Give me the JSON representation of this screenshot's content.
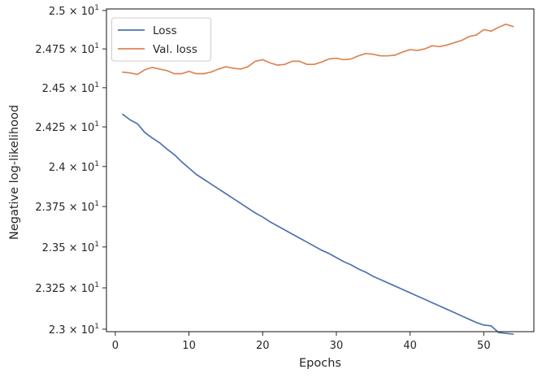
{
  "chart_data": {
    "type": "line",
    "xlabel": "Epochs",
    "ylabel": "Negative log-likelihood",
    "xlim": [
      -1.2,
      56.8
    ],
    "ylim": [
      22.985,
      25.01
    ],
    "y_scale": "log",
    "grid": false,
    "legend_placement": "top-left",
    "x_ticks": [
      0,
      10,
      20,
      30,
      40,
      50
    ],
    "y_ticks": [
      {
        "value": 23.0,
        "mantissa": "2.3"
      },
      {
        "value": 23.25,
        "mantissa": "2.325"
      },
      {
        "value": 23.5,
        "mantissa": "2.35"
      },
      {
        "value": 23.75,
        "mantissa": "2.375"
      },
      {
        "value": 24.0,
        "mantissa": "2.4"
      },
      {
        "value": 24.25,
        "mantissa": "2.425"
      },
      {
        "value": 24.5,
        "mantissa": "2.45"
      },
      {
        "value": 24.75,
        "mantissa": "2.475"
      },
      {
        "value": 25.0,
        "mantissa": "2.5"
      }
    ],
    "y_tick_suffix": "× 10",
    "y_tick_exponent": "1",
    "series": [
      {
        "name": "Loss",
        "color": "#4c72b0",
        "x": [
          1,
          2,
          3,
          4,
          5,
          6,
          7,
          8,
          9,
          10,
          11,
          12,
          13,
          14,
          15,
          16,
          17,
          18,
          19,
          20,
          21,
          22,
          23,
          24,
          25,
          26,
          27,
          28,
          29,
          30,
          31,
          32,
          33,
          34,
          35,
          36,
          37,
          38,
          39,
          40,
          41,
          42,
          43,
          44,
          45,
          46,
          47,
          48,
          49,
          50,
          51,
          52,
          53,
          54
        ],
        "y": [
          24.33,
          24.295,
          24.27,
          24.215,
          24.18,
          24.15,
          24.11,
          24.075,
          24.03,
          23.99,
          23.95,
          23.92,
          23.89,
          23.86,
          23.83,
          23.8,
          23.77,
          23.74,
          23.71,
          23.685,
          23.655,
          23.63,
          23.605,
          23.58,
          23.555,
          23.53,
          23.505,
          23.48,
          23.46,
          23.435,
          23.41,
          23.39,
          23.365,
          23.345,
          23.32,
          23.3,
          23.28,
          23.26,
          23.24,
          23.22,
          23.2,
          23.18,
          23.16,
          23.14,
          23.12,
          23.1,
          23.08,
          23.06,
          23.04,
          23.025,
          23.02,
          22.98,
          22.975,
          22.97
        ]
      },
      {
        "name": "Val. loss",
        "color": "#dd8452",
        "x": [
          1,
          2,
          3,
          4,
          5,
          6,
          7,
          8,
          9,
          10,
          11,
          12,
          13,
          14,
          15,
          16,
          17,
          18,
          19,
          20,
          21,
          22,
          23,
          24,
          25,
          26,
          27,
          28,
          29,
          30,
          31,
          32,
          33,
          34,
          35,
          36,
          37,
          38,
          39,
          40,
          41,
          42,
          43,
          44,
          45,
          46,
          47,
          48,
          49,
          50,
          51,
          52,
          53,
          54
        ],
        "y": [
          24.6,
          24.595,
          24.585,
          24.615,
          24.63,
          24.62,
          24.61,
          24.59,
          24.59,
          24.605,
          24.59,
          24.59,
          24.6,
          24.62,
          24.635,
          24.625,
          24.62,
          24.635,
          24.67,
          24.68,
          24.66,
          24.645,
          24.65,
          24.67,
          24.67,
          24.65,
          24.65,
          24.665,
          24.685,
          24.69,
          24.68,
          24.685,
          24.705,
          24.72,
          24.715,
          24.705,
          24.705,
          24.71,
          24.73,
          24.745,
          24.74,
          24.75,
          24.77,
          24.765,
          24.775,
          24.79,
          24.805,
          24.83,
          24.84,
          24.875,
          24.865,
          24.89,
          24.91,
          24.895
        ]
      }
    ]
  }
}
